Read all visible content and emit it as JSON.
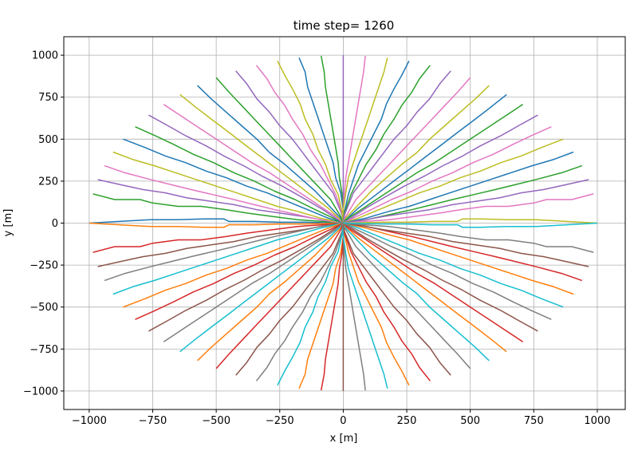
{
  "chart_data": {
    "type": "line",
    "title": "time step= 1260",
    "xlabel": "x [m]",
    "ylabel": "y [m]",
    "xlim": [
      -1100,
      1110
    ],
    "ylim": [
      -1110,
      1110
    ],
    "xticks": [
      -1000,
      -750,
      -500,
      -250,
      0,
      250,
      500,
      750,
      1000
    ],
    "yticks": [
      -1000,
      -750,
      -500,
      -250,
      0,
      250,
      500,
      750,
      1000
    ],
    "xtick_labels": [
      "−1000",
      "−750",
      "−500",
      "−250",
      "0",
      "250",
      "500",
      "750",
      "1000"
    ],
    "ytick_labels": [
      "−1000",
      "−750",
      "−500",
      "−250",
      "0",
      "250",
      "500",
      "750",
      "1000"
    ],
    "grid": true,
    "colors": [
      "#1f77b4",
      "#ff7f0e",
      "#2ca02c",
      "#d62728",
      "#9467bd",
      "#8c564b",
      "#e377c2",
      "#7f7f7f",
      "#bcbd22",
      "#17becf"
    ],
    "series": [
      {
        "x": [
          -1000,
          -760,
          -650,
          -540,
          -470,
          -450,
          -350,
          -250,
          -150,
          -50,
          0
        ]
      },
      {
        "x": [
          -985,
          -900,
          -800,
          -750,
          -650,
          -560,
          -460,
          -380,
          -280,
          -180,
          -80,
          0
        ]
      },
      {
        "x": [
          -966,
          -880,
          -790,
          -700,
          -615,
          -520,
          -430,
          -340,
          -250,
          -160,
          -70,
          0
        ]
      },
      {
        "x": [
          -940,
          -860,
          -760,
          -680,
          -600,
          -515,
          -430,
          -350,
          -270,
          -180,
          -90,
          0
        ]
      },
      {
        "x": [
          -906,
          -830,
          -740,
          -660,
          -580,
          -500,
          -420,
          -340,
          -260,
          -180,
          -90,
          0
        ]
      },
      {
        "x": [
          -866,
          -780,
          -700,
          -620,
          -540,
          -460,
          -380,
          -300,
          -220,
          -140,
          -60,
          0
        ]
      },
      {
        "x": [
          -819,
          -740,
          -670,
          -590,
          -510,
          -430,
          -350,
          -270,
          -190,
          -110,
          -40,
          0
        ]
      },
      {
        "x": [
          -766,
          -690,
          -620,
          -540,
          -470,
          -390,
          -320,
          -240,
          -170,
          -90,
          -30,
          0
        ]
      },
      {
        "x": [
          -707,
          -640,
          -570,
          -500,
          -430,
          -360,
          -290,
          -220,
          -150,
          -80,
          -20,
          0
        ]
      },
      {
        "x": [
          -643,
          -580,
          -520,
          -450,
          -390,
          -320,
          -260,
          -190,
          -130,
          -60,
          -10,
          0
        ]
      },
      {
        "x": [
          -574,
          -520,
          -460,
          -400,
          -340,
          -290,
          -230,
          -170,
          -110,
          -60,
          -10,
          0
        ]
      },
      {
        "x": [
          -500,
          -450,
          -400,
          -350,
          -300,
          -250,
          -200,
          -150,
          -100,
          -50,
          -10,
          0
        ]
      },
      {
        "x": [
          -423,
          -380,
          -340,
          -290,
          -250,
          -200,
          -160,
          -120,
          -80,
          -40,
          -5,
          0
        ]
      },
      {
        "x": [
          -342,
          -300,
          -270,
          -230,
          -200,
          -160,
          -130,
          -90,
          -60,
          -30,
          -5,
          0
        ]
      },
      {
        "x": [
          -259,
          -230,
          -200,
          -170,
          -150,
          -120,
          -100,
          -70,
          -50,
          -20,
          -5,
          0
        ]
      },
      {
        "x": [
          -174,
          -150,
          -140,
          -120,
          -100,
          -80,
          -60,
          -40,
          -30,
          -10,
          0,
          0
        ]
      },
      {
        "x": [
          -87,
          -75,
          -70,
          -60,
          -50,
          -40,
          -30,
          -20,
          -15,
          -5,
          0,
          0
        ]
      },
      {
        "x": [
          0,
          0,
          0,
          0,
          0,
          0,
          0,
          0,
          0,
          0,
          0,
          0
        ]
      },
      {
        "x": [
          87,
          80,
          70,
          60,
          50,
          40,
          30,
          20,
          10,
          5,
          0,
          0
        ]
      },
      {
        "x": [
          174,
          160,
          140,
          120,
          100,
          80,
          60,
          40,
          20,
          10,
          0,
          0
        ]
      },
      {
        "x": [
          259,
          230,
          200,
          170,
          150,
          120,
          90,
          60,
          40,
          20,
          5,
          0
        ]
      },
      {
        "x": [
          342,
          300,
          270,
          230,
          200,
          160,
          130,
          90,
          60,
          30,
          5,
          0
        ]
      },
      {
        "x": [
          423,
          380,
          340,
          290,
          250,
          200,
          160,
          120,
          80,
          40,
          5,
          0
        ]
      },
      {
        "x": [
          500,
          450,
          400,
          350,
          300,
          250,
          200,
          150,
          100,
          50,
          10,
          0
        ]
      },
      {
        "x": [
          574,
          520,
          460,
          400,
          340,
          290,
          230,
          170,
          110,
          60,
          10,
          0
        ]
      },
      {
        "x": [
          643,
          580,
          520,
          450,
          390,
          320,
          260,
          190,
          130,
          60,
          10,
          0
        ]
      },
      {
        "x": [
          707,
          640,
          570,
          500,
          430,
          360,
          290,
          220,
          150,
          80,
          20,
          0
        ]
      },
      {
        "x": [
          766,
          690,
          620,
          540,
          470,
          390,
          320,
          240,
          170,
          90,
          30,
          0
        ]
      },
      {
        "x": [
          819,
          740,
          670,
          590,
          510,
          430,
          350,
          270,
          190,
          110,
          40,
          0
        ]
      },
      {
        "x": [
          866,
          780,
          700,
          620,
          540,
          460,
          380,
          300,
          220,
          140,
          60,
          0
        ]
      },
      {
        "x": [
          906,
          830,
          740,
          660,
          580,
          500,
          420,
          340,
          260,
          180,
          90,
          0
        ]
      },
      {
        "x": [
          940,
          860,
          760,
          680,
          600,
          515,
          430,
          350,
          270,
          180,
          90,
          0
        ]
      },
      {
        "x": [
          966,
          880,
          790,
          700,
          615,
          520,
          430,
          340,
          250,
          160,
          70,
          0
        ]
      },
      {
        "x": [
          985,
          900,
          800,
          750,
          650,
          560,
          460,
          380,
          280,
          180,
          80,
          0
        ]
      },
      {
        "x": [
          1000,
          760,
          650,
          540,
          470,
          450,
          350,
          250,
          150,
          50,
          0
        ]
      }
    ],
    "y_series": [
      [
        0,
        20,
        20,
        25,
        25,
        10,
        10,
        5,
        5,
        2,
        0
      ],
      [
        174,
        140,
        140,
        120,
        100,
        100,
        80,
        60,
        40,
        20,
        10,
        0
      ],
      [
        259,
        230,
        200,
        180,
        150,
        130,
        110,
        80,
        60,
        40,
        15,
        0
      ],
      [
        342,
        300,
        260,
        230,
        200,
        170,
        140,
        110,
        80,
        50,
        20,
        0
      ],
      [
        423,
        380,
        340,
        300,
        260,
        220,
        180,
        140,
        100,
        70,
        30,
        0
      ],
      [
        500,
        450,
        400,
        360,
        310,
        270,
        220,
        180,
        130,
        80,
        30,
        0
      ],
      [
        574,
        520,
        470,
        410,
        360,
        300,
        250,
        190,
        140,
        80,
        30,
        0
      ],
      [
        643,
        580,
        520,
        460,
        400,
        340,
        280,
        220,
        160,
        90,
        30,
        0
      ],
      [
        707,
        640,
        570,
        500,
        430,
        360,
        300,
        230,
        160,
        90,
        30,
        0
      ],
      [
        766,
        690,
        620,
        540,
        470,
        390,
        320,
        240,
        170,
        90,
        20,
        0
      ],
      [
        819,
        740,
        660,
        580,
        500,
        420,
        350,
        270,
        190,
        110,
        30,
        0
      ],
      [
        866,
        780,
        700,
        620,
        540,
        460,
        380,
        300,
        220,
        140,
        40,
        0
      ],
      [
        906,
        830,
        740,
        660,
        580,
        500,
        420,
        340,
        260,
        180,
        50,
        0
      ],
      [
        940,
        860,
        780,
        700,
        620,
        530,
        440,
        350,
        260,
        170,
        60,
        0
      ],
      [
        966,
        880,
        800,
        710,
        620,
        530,
        440,
        350,
        260,
        170,
        70,
        0
      ],
      [
        985,
        900,
        810,
        720,
        630,
        540,
        450,
        360,
        270,
        180,
        80,
        0
      ],
      [
        996,
        900,
        810,
        720,
        630,
        540,
        450,
        360,
        270,
        180,
        80,
        0
      ],
      [
        1000,
        900,
        800,
        700,
        600,
        500,
        400,
        300,
        200,
        100,
        30,
        0
      ],
      [
        996,
        900,
        810,
        720,
        630,
        540,
        450,
        360,
        270,
        180,
        80,
        0
      ],
      [
        985,
        900,
        810,
        720,
        630,
        540,
        450,
        360,
        270,
        180,
        80,
        0
      ],
      [
        966,
        880,
        800,
        710,
        620,
        530,
        440,
        350,
        260,
        170,
        70,
        0
      ],
      [
        940,
        860,
        780,
        700,
        620,
        530,
        440,
        350,
        260,
        170,
        60,
        0
      ],
      [
        906,
        830,
        740,
        660,
        580,
        500,
        420,
        340,
        260,
        180,
        50,
        0
      ],
      [
        866,
        780,
        700,
        620,
        540,
        460,
        380,
        300,
        220,
        140,
        40,
        0
      ],
      [
        819,
        740,
        660,
        580,
        500,
        420,
        350,
        270,
        190,
        110,
        30,
        0
      ],
      [
        766,
        690,
        620,
        540,
        470,
        390,
        320,
        240,
        170,
        90,
        20,
        0
      ],
      [
        707,
        640,
        570,
        500,
        430,
        360,
        300,
        230,
        160,
        90,
        30,
        0
      ],
      [
        643,
        580,
        520,
        460,
        400,
        340,
        280,
        220,
        160,
        90,
        30,
        0
      ],
      [
        574,
        520,
        470,
        410,
        360,
        300,
        250,
        190,
        140,
        80,
        30,
        0
      ],
      [
        500,
        450,
        400,
        360,
        310,
        270,
        220,
        180,
        130,
        80,
        30,
        0
      ],
      [
        423,
        380,
        340,
        300,
        260,
        220,
        180,
        140,
        100,
        70,
        30,
        0
      ],
      [
        342,
        300,
        260,
        230,
        200,
        170,
        140,
        110,
        80,
        50,
        20,
        0
      ],
      [
        259,
        230,
        200,
        180,
        150,
        130,
        110,
        80,
        60,
        40,
        15,
        0
      ],
      [
        174,
        140,
        140,
        120,
        100,
        100,
        80,
        60,
        40,
        20,
        10,
        0
      ],
      [
        0,
        20,
        20,
        25,
        25,
        10,
        10,
        5,
        5,
        2,
        0
      ]
    ]
  }
}
